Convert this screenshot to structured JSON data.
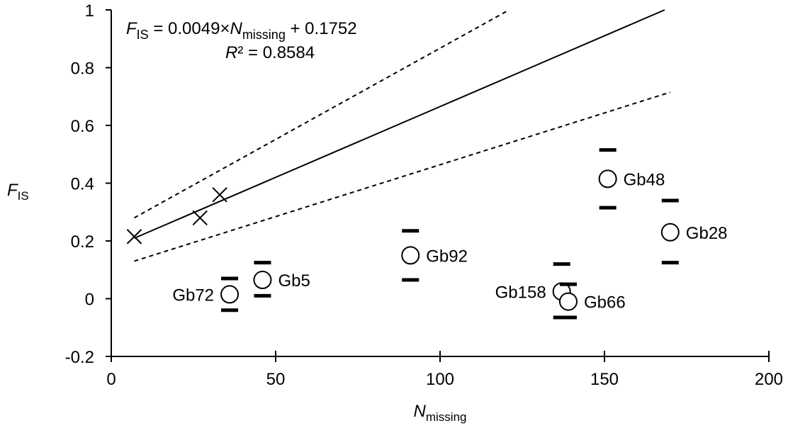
{
  "chart_data": {
    "type": "scatter",
    "equation": [
      "F",
      "IS",
      " = 0.0049×",
      "N",
      "missing",
      " + 0.1752"
    ],
    "r_squared": [
      "R",
      "² = 0.8584"
    ],
    "x_label": [
      "N",
      "missing"
    ],
    "y_label": [
      "F",
      "IS"
    ],
    "xlim": [
      0,
      200
    ],
    "xticks": [
      0,
      50,
      100,
      150,
      200
    ],
    "ylim": [
      -0.2,
      1
    ],
    "yticks": [
      -0.2,
      0,
      0.2,
      0.4,
      0.6,
      0.8,
      1
    ],
    "fit_points": {
      "x": [
        7,
        27,
        33
      ],
      "values": [
        0.215,
        0.28,
        0.36
      ]
    },
    "fit_line": {
      "x": [
        7,
        168.3
      ],
      "values": [
        0.2095,
        1
      ]
    },
    "upper_band": {
      "x": [
        7,
        121
      ],
      "values": [
        0.28,
        1
      ]
    },
    "lower_band": {
      "x": [
        7,
        170
      ],
      "values": [
        0.13,
        0.715
      ]
    },
    "points": {
      "labels": [
        "Gb72",
        "Gb5",
        "Gb92",
        "Gb158",
        "Gb66",
        "Gb48",
        "Gb28"
      ],
      "x": [
        36,
        46,
        91,
        137,
        139,
        151,
        170
      ],
      "values": [
        0.015,
        0.065,
        0.15,
        0.025,
        -0.01,
        0.415,
        0.23
      ],
      "upper": [
        0.07,
        0.125,
        0.235,
        0.12,
        0.05,
        0.515,
        0.34
      ],
      "lower": [
        -0.04,
        0.01,
        0.065,
        -0.065,
        -0.065,
        0.315,
        0.125
      ]
    }
  }
}
